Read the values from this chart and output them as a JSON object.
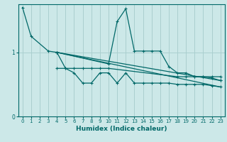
{
  "xlabel": "Humidex (Indice chaleur)",
  "bg_color": "#cce8e8",
  "grid_color": "#aacfcf",
  "line_color": "#006868",
  "xlim": [
    -0.5,
    23.5
  ],
  "ylim": [
    0,
    1.75
  ],
  "yticks": [
    0,
    1
  ],
  "xticks": [
    0,
    1,
    2,
    3,
    4,
    5,
    6,
    7,
    8,
    9,
    10,
    11,
    12,
    13,
    14,
    15,
    16,
    17,
    18,
    19,
    20,
    21,
    22,
    23
  ],
  "line1": {
    "x": [
      0,
      1,
      3,
      4,
      10,
      11,
      12,
      13,
      14,
      15,
      16,
      17,
      18,
      19,
      20,
      21,
      22,
      23
    ],
    "y": [
      1.7,
      1.25,
      1.02,
      1.0,
      0.82,
      1.48,
      1.68,
      1.02,
      1.02,
      1.02,
      1.02,
      0.78,
      0.68,
      0.68,
      0.62,
      0.62,
      0.6,
      0.56
    ]
  },
  "line2": {
    "x": [
      4,
      5,
      6,
      7,
      8,
      9,
      10,
      11,
      12,
      13,
      14,
      15,
      16,
      17,
      18,
      19,
      20,
      21,
      22,
      23
    ],
    "y": [
      1.0,
      0.75,
      0.68,
      0.52,
      0.52,
      0.68,
      0.68,
      0.52,
      0.68,
      0.52,
      0.52,
      0.52,
      0.52,
      0.52,
      0.5,
      0.5,
      0.5,
      0.5,
      0.48,
      0.46
    ]
  },
  "line3": {
    "x": [
      4,
      23
    ],
    "y": [
      1.0,
      0.56
    ]
  },
  "line4": {
    "x": [
      4,
      23
    ],
    "y": [
      1.0,
      0.46
    ]
  },
  "line5": {
    "x": [
      4,
      5,
      6,
      7,
      8,
      9,
      10,
      18,
      19,
      20,
      21,
      22,
      23
    ],
    "y": [
      0.75,
      0.75,
      0.75,
      0.75,
      0.75,
      0.75,
      0.75,
      0.62,
      0.62,
      0.62,
      0.62,
      0.62,
      0.62
    ]
  }
}
